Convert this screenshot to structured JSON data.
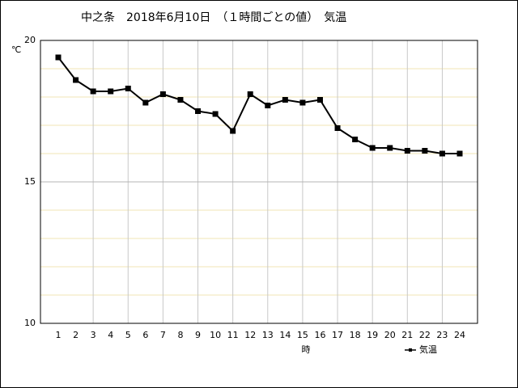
{
  "chart_data": {
    "type": "line",
    "title": "中之条　2018年6月10日　（１時間ごとの値）　気温",
    "y_label": "℃",
    "x_label": "時",
    "categories": [
      "1",
      "2",
      "3",
      "4",
      "5",
      "6",
      "7",
      "8",
      "9",
      "10",
      "11",
      "12",
      "13",
      "14",
      "15",
      "16",
      "17",
      "18",
      "19",
      "20",
      "21",
      "22",
      "23",
      "24"
    ],
    "series": [
      {
        "name": "気温",
        "color": "#000000",
        "values": [
          19.4,
          18.6,
          18.2,
          18.2,
          18.3,
          17.8,
          18.1,
          17.9,
          17.5,
          17.4,
          16.8,
          18.1,
          17.7,
          17.9,
          17.8,
          17.9,
          16.9,
          16.5,
          16.2,
          16.2,
          16.1,
          16.1,
          16.0,
          16.0
        ]
      }
    ],
    "ylim": [
      10,
      20
    ],
    "yticks": [
      10,
      15,
      20
    ],
    "minor_yticks": [
      11,
      12,
      13,
      14,
      16,
      17,
      18,
      19
    ],
    "grid": true,
    "legend": "bottom-right"
  }
}
